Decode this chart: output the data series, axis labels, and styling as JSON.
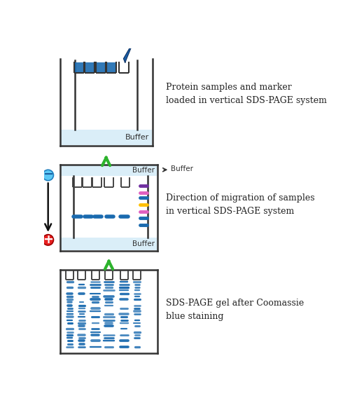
{
  "bg_color": "#ffffff",
  "panel1_text": "Protein samples and marker\nloaded in vertical SDS-PAGE system",
  "panel2_text": "Direction of migration of samples\nin vertical SDS-PAGE system",
  "panel3_text": "SDS-PAGE gel after Coomassie\nblue staining",
  "arrow_color": "#2db32d",
  "buffer_color": "#daeef8",
  "sample_blue": "#1a6aaf",
  "marker_colors": [
    "#7030a0",
    "#e060c0",
    "#1a6aaf",
    "#ffc000",
    "#e060c0",
    "#1a6aaf",
    "#1a6aaf"
  ],
  "band_blue": "#1a6aaf",
  "line_color": "#333333",
  "text_color": "#222222"
}
